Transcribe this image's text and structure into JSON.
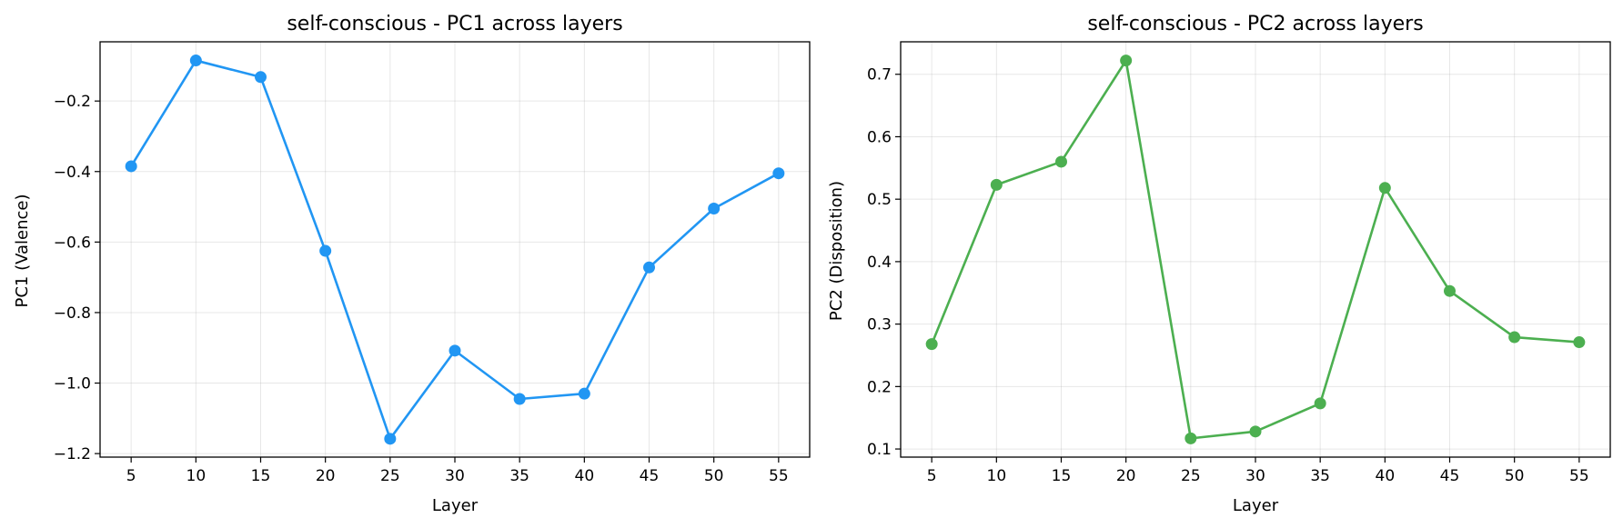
{
  "chart_data": [
    {
      "type": "line",
      "title": "self-conscious - PC1 across layers",
      "xlabel": "Layer",
      "ylabel": "PC1 (Valence)",
      "x": [
        5,
        10,
        15,
        20,
        25,
        30,
        35,
        40,
        45,
        50,
        55
      ],
      "series": [
        {
          "values": [
            -0.385,
            -0.085,
            -0.132,
            -0.625,
            -1.158,
            -0.908,
            -1.045,
            -1.03,
            -0.672,
            -0.505,
            -0.405
          ],
          "color": "#2196F3"
        }
      ],
      "xticks": [
        5,
        10,
        15,
        20,
        25,
        30,
        35,
        40,
        45,
        50,
        55
      ],
      "xtick_labels": [
        "5",
        "10",
        "15",
        "20",
        "25",
        "30",
        "35",
        "40",
        "45",
        "50",
        "55"
      ],
      "yticks": [
        -1.2,
        -1.0,
        -0.8,
        -0.6,
        -0.4,
        -0.2
      ],
      "ytick_labels": [
        "−1.2",
        "−1.0",
        "−0.8",
        "−0.6",
        "−0.4",
        "−0.2"
      ],
      "xlim": [
        2.6,
        57.4
      ],
      "ylim": [
        -1.21,
        -0.032
      ],
      "grid": true
    },
    {
      "type": "line",
      "title": "self-conscious - PC2 across layers",
      "xlabel": "Layer",
      "ylabel": "PC2 (Disposition)",
      "x": [
        5,
        10,
        15,
        20,
        25,
        30,
        35,
        40,
        45,
        50,
        55
      ],
      "series": [
        {
          "values": [
            0.268,
            0.523,
            0.56,
            0.722,
            0.117,
            0.128,
            0.173,
            0.518,
            0.353,
            0.279,
            0.271
          ],
          "color": "#4CAF50"
        }
      ],
      "xticks": [
        5,
        10,
        15,
        20,
        25,
        30,
        35,
        40,
        45,
        50,
        55
      ],
      "xtick_labels": [
        "5",
        "10",
        "15",
        "20",
        "25",
        "30",
        "35",
        "40",
        "45",
        "50",
        "55"
      ],
      "yticks": [
        0.1,
        0.2,
        0.3,
        0.4,
        0.5,
        0.6,
        0.7
      ],
      "ytick_labels": [
        "0.1",
        "0.2",
        "0.3",
        "0.4",
        "0.5",
        "0.6",
        "0.7"
      ],
      "xlim": [
        2.6,
        57.4
      ],
      "ylim": [
        0.087,
        0.752
      ],
      "grid": true
    }
  ]
}
